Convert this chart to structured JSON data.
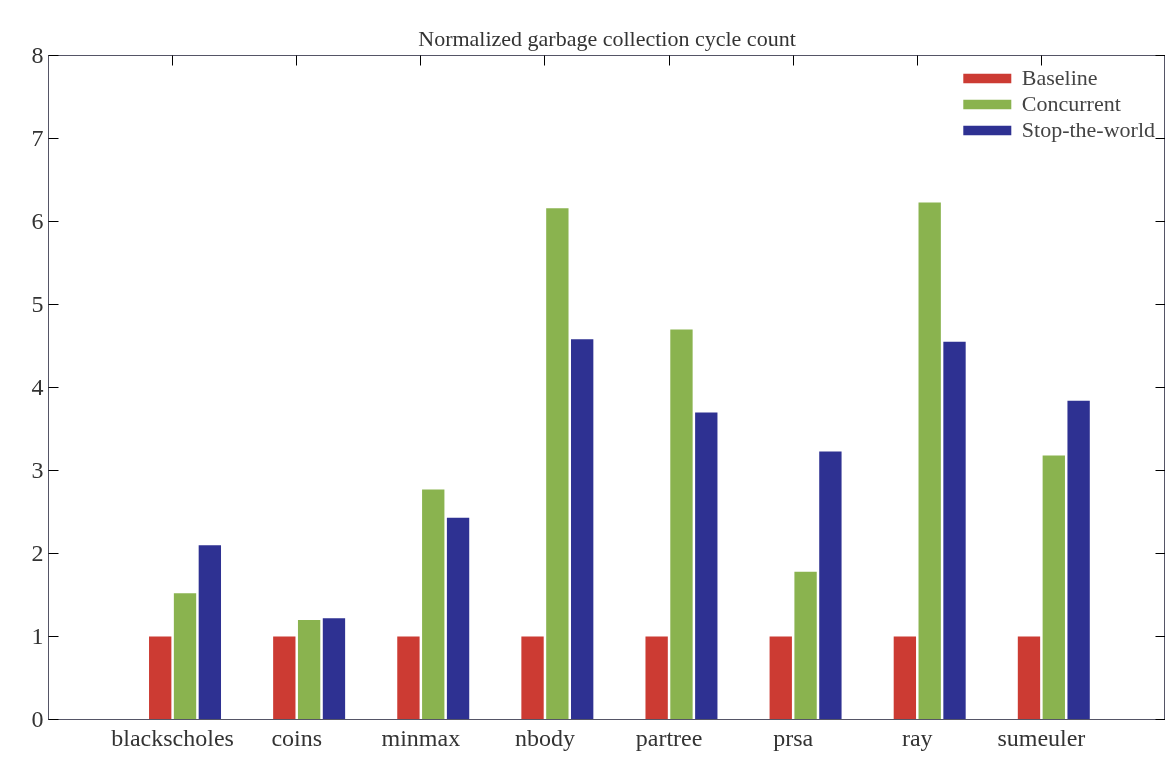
{
  "chart_data": {
    "type": "bar",
    "title": "Normalized garbage collection cycle count",
    "categories": [
      "blackscholes",
      "coins",
      "minmax",
      "nbody",
      "partree",
      "prsa",
      "ray",
      "sumeuler"
    ],
    "series": [
      {
        "name": "Baseline",
        "color": "#cc3b33",
        "values": [
          1,
          1,
          1,
          1,
          1,
          1,
          1,
          1
        ]
      },
      {
        "name": "Concurrent",
        "color": "#8ab34f",
        "values": [
          1.52,
          1.2,
          2.77,
          6.16,
          4.7,
          1.78,
          6.23,
          3.18
        ]
      },
      {
        "name": "Stop-the-world",
        "color": "#2e3192",
        "values": [
          2.1,
          1.22,
          2.43,
          4.58,
          3.7,
          3.23,
          4.55,
          3.84
        ]
      }
    ],
    "ylim": [
      0,
      8
    ],
    "yticks": [
      0,
      1,
      2,
      3,
      4,
      5,
      6,
      7,
      8
    ],
    "grid": false,
    "legend": "top right"
  }
}
